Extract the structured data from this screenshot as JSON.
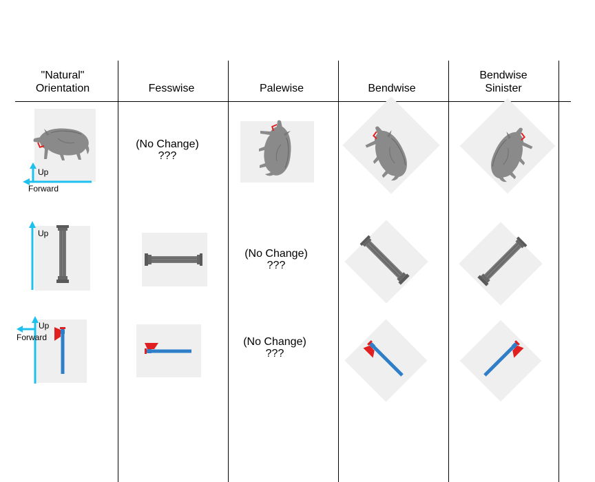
{
  "headers": [
    {
      "line1": "\"Natural\"",
      "line2": "Orientation"
    },
    {
      "line1": "",
      "line2": "Fesswise"
    },
    {
      "line1": "",
      "line2": "Palewise"
    },
    {
      "line1": "",
      "line2": "Bendwise"
    },
    {
      "line1": "Bendwise",
      "line2": "Sinister"
    }
  ],
  "rows": [
    {
      "charge": "boar",
      "up_label": "Up",
      "forward_label": "Forward",
      "no_change": {
        "line1": "(No Change)",
        "line2": "???"
      }
    },
    {
      "charge": "column",
      "up_label": "Up",
      "no_change": {
        "line1": "(No Change)",
        "line2": "???"
      }
    },
    {
      "charge": "axe",
      "up_label": "Up",
      "forward_label": "Forward",
      "no_change": {
        "line1": "(No Change)",
        "line2": "???"
      }
    }
  ],
  "colors": {
    "arrow": "#1ec1ee",
    "charge_grey": "#8a8a8a",
    "tile": "#efefef",
    "axe_handle": "#2f7ec8",
    "axe_blade": "#e02020"
  },
  "icons": [
    "boar-icon",
    "column-icon",
    "axe-icon",
    "up-arrow-icon",
    "forward-arrow-icon"
  ]
}
